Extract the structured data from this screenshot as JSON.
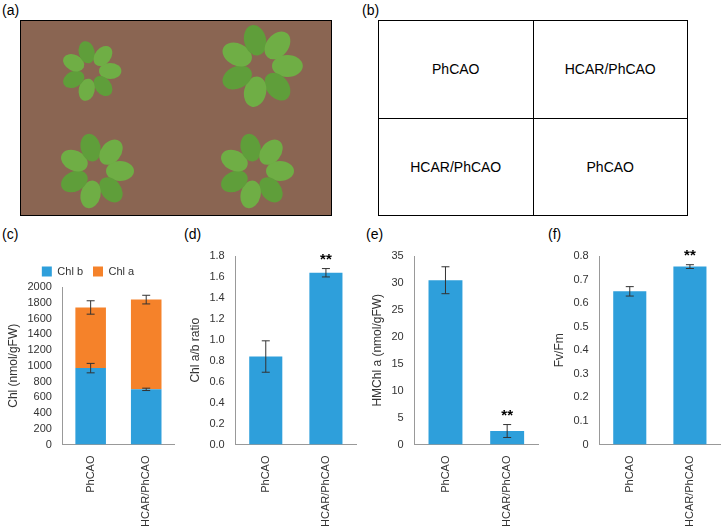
{
  "panel_a": {
    "panel": "(a)"
  },
  "panel_b": {
    "panel": "(b)",
    "rows": [
      [
        "PhCAO",
        "HCAR/PhCAO"
      ],
      [
        "HCAR/PhCAO",
        "PhCAO"
      ]
    ]
  },
  "chart_data": [
    {
      "panel": "(c)",
      "type": "bar",
      "stacked": true,
      "legend": "top",
      "grid": false,
      "categories": [
        "PhCAO",
        "HCAR/PhCAO"
      ],
      "series": [
        {
          "name": "Chl b",
          "color": "#2E9FDB",
          "values": [
            970,
            700
          ],
          "errors": [
            60,
            15
          ]
        },
        {
          "name": "Chl a",
          "color": "#F5822A",
          "values": [
            770,
            1140
          ],
          "errors": [
            85,
            55
          ]
        }
      ],
      "y_label": "Chl (nmol/gFW)",
      "ylim": [
        0,
        2000
      ],
      "yticks": [
        0,
        200,
        400,
        600,
        800,
        1000,
        1200,
        1400,
        1600,
        1800,
        2000
      ]
    },
    {
      "panel": "(d)",
      "type": "bar",
      "grid": false,
      "categories": [
        "PhCAO",
        "HCAR/PhCAO"
      ],
      "values": [
        0.84,
        1.64
      ],
      "errors": [
        0.15,
        0.04
      ],
      "color": "#2E9FDB",
      "annotations": [
        {
          "category": "HCAR/PhCAO",
          "text": "**"
        }
      ],
      "y_label": "Chl a/b ratio",
      "ylim": [
        0,
        1.8
      ],
      "yticks": [
        {
          "value": 0,
          "label": "0.0"
        },
        {
          "value": 0.2,
          "label": "0.2"
        },
        {
          "value": 0.4,
          "label": "0.4"
        },
        {
          "value": 0.6,
          "label": "0.6"
        },
        {
          "value": 0.8,
          "label": "0.8"
        },
        {
          "value": 1,
          "label": "1.0"
        },
        {
          "value": 1.2,
          "label": "1.2"
        },
        {
          "value": 1.4,
          "label": "1.4"
        },
        {
          "value": 1.6,
          "label": "1.6"
        },
        {
          "value": 1.8,
          "label": "1.8"
        }
      ]
    },
    {
      "panel": "(e)",
      "type": "bar",
      "grid": false,
      "categories": [
        "PhCAO",
        "HCAR/PhCAO"
      ],
      "values": [
        30.5,
        2.5
      ],
      "errors": [
        2.5,
        1.2
      ],
      "color": "#2E9FDB",
      "annotations": [
        {
          "category": "HCAR/PhCAO",
          "text": "**"
        }
      ],
      "y_label": "HMChl a (nmol/gFW)",
      "ylim": [
        0,
        35
      ],
      "yticks": [
        0,
        5,
        10,
        15,
        20,
        25,
        30,
        35
      ]
    },
    {
      "panel": "(f)",
      "type": "bar",
      "grid": false,
      "categories": [
        "PhCAO",
        "HCAR/PhCAO"
      ],
      "values": [
        0.65,
        0.755
      ],
      "errors": [
        0.02,
        0.008
      ],
      "color": "#2E9FDB",
      "annotations": [
        {
          "category": "HCAR/PhCAO",
          "text": "**"
        }
      ],
      "y_label": "Fv/Fm",
      "ylim": [
        0,
        0.8
      ],
      "yticks": [
        0,
        0.1,
        0.2,
        0.3,
        0.4,
        0.5,
        0.6,
        0.7,
        0.8
      ]
    }
  ]
}
